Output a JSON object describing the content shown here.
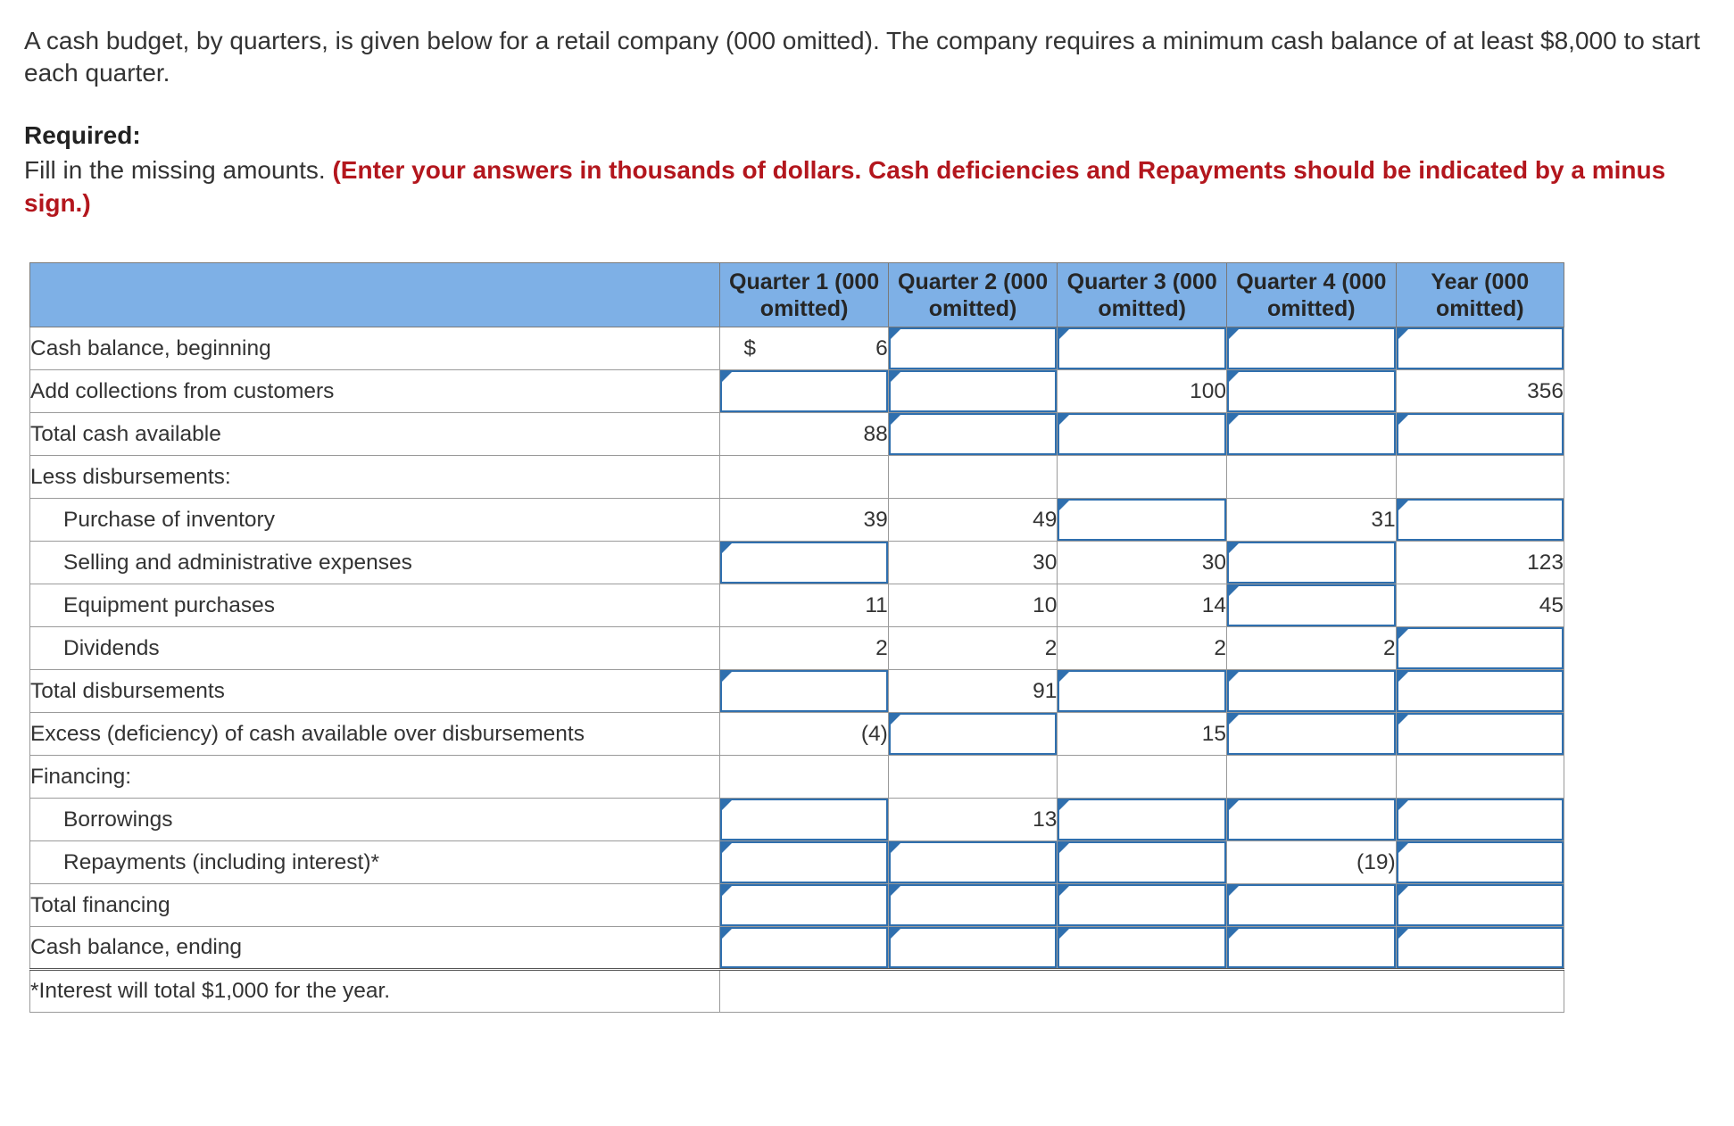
{
  "intro": "A cash budget, by quarters, is given below for a retail company (000 omitted). The company requires a minimum cash balance of at least $8,000 to start each quarter.",
  "required_heading": "Required:",
  "instruction_plain": "Fill in the missing amounts. ",
  "instruction_bold": "(Enter your answers in thousands of dollars. Cash deficiencies and Repayments should be indicated by a minus sign.)",
  "table": {
    "headers": [
      "",
      "Quarter 1 (000 omitted)",
      "Quarter 2 (000 omitted)",
      "Quarter 3 (000 omitted)",
      "Quarter 4 (000 omitted)",
      "Year (000 omitted)"
    ],
    "currency_symbol": "$",
    "rows": [
      {
        "label": "Cash balance, beginning",
        "indent": false,
        "cells": [
          "6",
          null,
          null,
          null,
          null
        ]
      },
      {
        "label": "Add collections from customers",
        "indent": false,
        "cells": [
          null,
          null,
          "100",
          null,
          "356"
        ]
      },
      {
        "label": "Total cash available",
        "indent": false,
        "cells": [
          "88",
          null,
          null,
          null,
          null
        ]
      },
      {
        "label": "Less disbursements:",
        "indent": false,
        "section": true,
        "cells": [
          "",
          "",
          "",
          "",
          ""
        ]
      },
      {
        "label": "Purchase of inventory",
        "indent": true,
        "cells": [
          "39",
          "49",
          null,
          "31",
          null
        ]
      },
      {
        "label": "Selling and administrative expenses",
        "indent": true,
        "cells": [
          null,
          "30",
          "30",
          null,
          "123"
        ]
      },
      {
        "label": "Equipment purchases",
        "indent": true,
        "cells": [
          "11",
          "10",
          "14",
          null,
          "45"
        ]
      },
      {
        "label": "Dividends",
        "indent": true,
        "cells": [
          "2",
          "2",
          "2",
          "2",
          null
        ]
      },
      {
        "label": "Total disbursements",
        "indent": false,
        "cells": [
          null,
          "91",
          null,
          null,
          null
        ]
      },
      {
        "label": "Excess (deficiency) of cash available over disbursements",
        "indent": false,
        "cells": [
          "(4)",
          null,
          "15",
          null,
          null
        ]
      },
      {
        "label": "Financing:",
        "indent": false,
        "section": true,
        "cells": [
          "",
          "",
          "",
          "",
          ""
        ]
      },
      {
        "label": "Borrowings",
        "indent": true,
        "cells": [
          null,
          "13",
          null,
          null,
          null
        ]
      },
      {
        "label": "Repayments (including interest)*",
        "indent": true,
        "cells": [
          null,
          null,
          null,
          "(19)",
          null
        ]
      },
      {
        "label": "Total financing",
        "indent": false,
        "cells": [
          null,
          null,
          null,
          null,
          null
        ]
      },
      {
        "label": "Cash balance, ending",
        "indent": false,
        "ending": true,
        "cells": [
          null,
          null,
          null,
          null,
          null
        ]
      }
    ],
    "footnote": "*Interest will total $1,000 for the year."
  },
  "colors": {
    "header_bg": "#7eb0e6",
    "input_border": "#2f6fae",
    "instruction_red": "#b3161d"
  }
}
